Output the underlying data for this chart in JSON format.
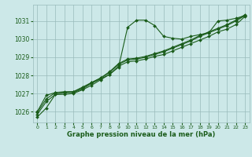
{
  "bg_color": "#cce8e8",
  "grid_color": "#99bbbb",
  "line_color": "#1a5c1a",
  "marker_color": "#1a5c1a",
  "xlabel": "Graphe pression niveau de la mer (hPa)",
  "xlabel_color": "#1a5c1a",
  "yticks": [
    1026,
    1027,
    1028,
    1029,
    1030,
    1031
  ],
  "xticks": [
    0,
    1,
    2,
    3,
    4,
    5,
    6,
    7,
    8,
    9,
    10,
    11,
    12,
    13,
    14,
    15,
    16,
    17,
    18,
    19,
    20,
    21,
    22,
    23
  ],
  "xlim": [
    -0.5,
    23.5
  ],
  "ylim": [
    1025.4,
    1031.9
  ],
  "line1_x": [
    0,
    1,
    2,
    3,
    4,
    5,
    6,
    7,
    8,
    9,
    10,
    11,
    12,
    13,
    14,
    15,
    16,
    17,
    18,
    19,
    20,
    21,
    22,
    23
  ],
  "line1_y": [
    1025.7,
    1026.2,
    1026.95,
    1026.95,
    1027.0,
    1027.2,
    1027.45,
    1027.75,
    1028.05,
    1028.45,
    1030.65,
    1031.05,
    1031.05,
    1030.75,
    1030.15,
    1030.05,
    1030.0,
    1030.15,
    1030.25,
    1030.35,
    1031.0,
    1031.05,
    1031.15,
    1031.3
  ],
  "line2_x": [
    0,
    1,
    2,
    3,
    4,
    5,
    6,
    7,
    8,
    9,
    10,
    11,
    12,
    13,
    14,
    15,
    16,
    17,
    18,
    19,
    20,
    21,
    22,
    23
  ],
  "line2_y": [
    1025.85,
    1026.55,
    1026.95,
    1027.05,
    1027.05,
    1027.25,
    1027.55,
    1027.8,
    1028.05,
    1028.5,
    1028.75,
    1028.8,
    1028.9,
    1029.05,
    1029.15,
    1029.35,
    1029.55,
    1029.75,
    1029.95,
    1030.15,
    1030.4,
    1030.55,
    1030.8,
    1031.25
  ],
  "line3_x": [
    0,
    1,
    2,
    3,
    4,
    5,
    6,
    7,
    8,
    9,
    10,
    11,
    12,
    13,
    14,
    15,
    16,
    17,
    18,
    19,
    20,
    21,
    22,
    23
  ],
  "line3_y": [
    1025.95,
    1026.7,
    1027.05,
    1027.1,
    1027.1,
    1027.3,
    1027.6,
    1027.85,
    1028.15,
    1028.6,
    1028.85,
    1028.9,
    1029.0,
    1029.15,
    1029.3,
    1029.5,
    1029.7,
    1029.9,
    1030.15,
    1030.35,
    1030.55,
    1030.75,
    1031.0,
    1031.3
  ],
  "line4_x": [
    0,
    1,
    2,
    3,
    4,
    5,
    6,
    7,
    8,
    9,
    10,
    11,
    12,
    13,
    14,
    15,
    16,
    17,
    18,
    19,
    20,
    21,
    22,
    23
  ],
  "line4_y": [
    1026.0,
    1026.9,
    1027.05,
    1027.05,
    1027.1,
    1027.35,
    1027.6,
    1027.85,
    1028.2,
    1028.65,
    1028.9,
    1028.95,
    1029.05,
    1029.2,
    1029.35,
    1029.55,
    1029.75,
    1029.95,
    1030.2,
    1030.4,
    1030.6,
    1030.8,
    1031.05,
    1031.35
  ]
}
